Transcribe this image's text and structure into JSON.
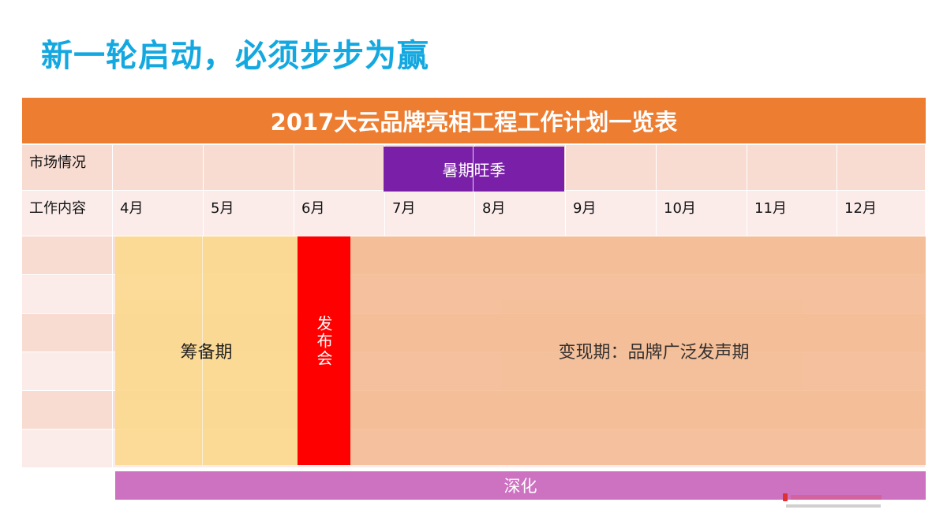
{
  "slide": {
    "title": "新一轮启动，必须步步为赢"
  },
  "table": {
    "title": "2017大云品牌亮相工程工作计划一览表",
    "market_label": "市场情况",
    "work_label": "工作内容",
    "months": [
      "4月",
      "5月",
      "6月",
      "7月",
      "8月",
      "9月",
      "10月",
      "11月",
      "12月"
    ],
    "season_label": "暑期旺季"
  },
  "phases": {
    "prep": "筹备期",
    "launch": "发布会",
    "monetize": "变现期：品牌广泛发声期",
    "deepen": "深化"
  },
  "colors": {
    "title": "#14a8e0",
    "header": "#ed7d31",
    "season": "#7a1fa8",
    "prep": "#fbd98f",
    "launch": "#ff0000",
    "monetize": "#f3b98f",
    "deepen": "#cd71c1"
  }
}
